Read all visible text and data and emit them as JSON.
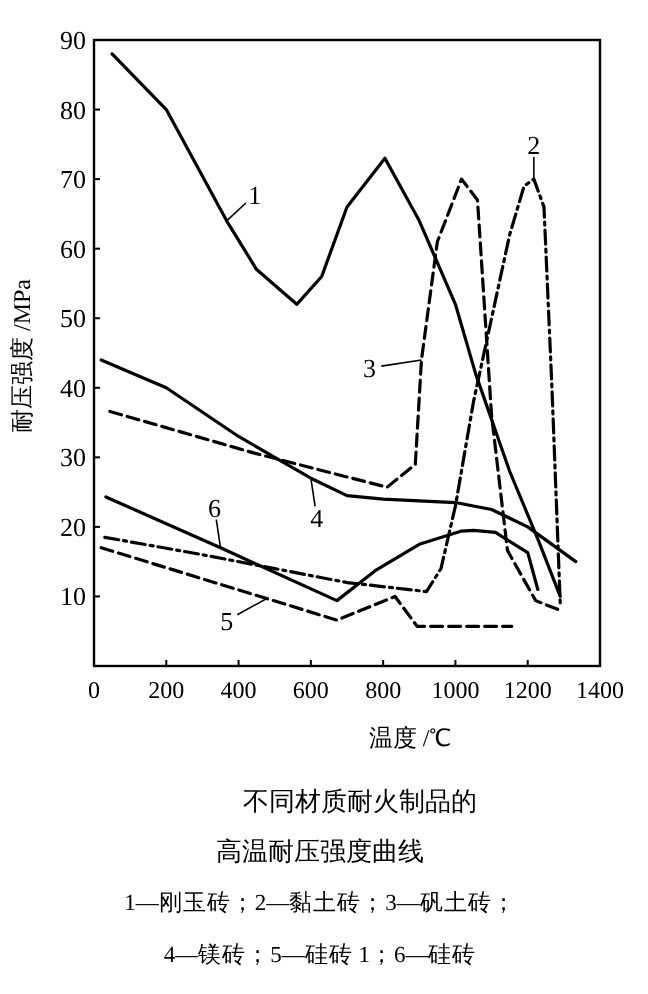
{
  "chart_data": {
    "type": "line",
    "title": "不同材质耐火制品的",
    "subtitle": "高温耐压强度曲线",
    "xlabel": "温度 /℃",
    "ylabel": "耐压强度 /MPa",
    "xlim": [
      0,
      1400
    ],
    "ylim": [
      0,
      90
    ],
    "xticks": [
      0,
      200,
      400,
      600,
      800,
      1000,
      1200,
      1400
    ],
    "yticks": [
      10,
      20,
      30,
      40,
      50,
      60,
      70,
      80,
      90
    ],
    "grid": false,
    "marker": "none",
    "series": [
      {
        "color": "#000000",
        "line_style": "solid",
        "x": [
          50,
          200,
          367,
          450,
          561,
          630,
          700,
          805,
          900,
          1000,
          1056,
          1150,
          1230,
          1290
        ],
        "values": [
          88,
          80,
          64,
          57,
          52,
          56,
          66,
          73,
          64,
          52,
          42,
          28,
          18,
          10
        ]
      },
      {
        "color": "#000000",
        "line_style": "dashdot",
        "x": [
          30,
          300,
          500,
          700,
          920,
          960,
          1000,
          1050,
          1100,
          1150,
          1190,
          1217,
          1245,
          1267,
          1290
        ],
        "values": [
          18.5,
          16,
          14,
          12,
          10.7,
          14,
          23,
          38,
          50,
          62,
          69,
          70,
          66,
          40,
          9
        ]
      },
      {
        "color": "#000000",
        "line_style": "dashed",
        "x": [
          44,
          444,
          811,
          889,
          906,
          950,
          1017,
          1061,
          1100,
          1144,
          1222,
          1290
        ],
        "values": [
          36.6,
          30.6,
          25.7,
          29,
          44,
          61,
          70,
          67,
          36,
          16.6,
          9.4,
          8
        ]
      },
      {
        "color": "#000000",
        "line_style": "solid",
        "x": [
          20,
          200,
          400,
          500,
          600,
          700,
          800,
          1000,
          1100,
          1200,
          1333
        ],
        "values": [
          44,
          40,
          33,
          30,
          27,
          24.5,
          24,
          23.5,
          22.5,
          20,
          15
        ]
      },
      {
        "color": "#000000",
        "line_style": "dashed",
        "x": [
          20,
          478,
          672,
          833,
          894,
          1156
        ],
        "values": [
          17,
          9.7,
          6.6,
          10,
          5.7,
          5.7
        ]
      },
      {
        "color": "#000000",
        "line_style": "solid",
        "x": [
          33,
          350,
          672,
          778,
          900,
          1017,
          1050,
          1111,
          1200,
          1228
        ],
        "values": [
          24.3,
          17,
          9.4,
          13.7,
          17.5,
          19.4,
          19.5,
          19.2,
          16.3,
          11
        ]
      }
    ],
    "annotations": [
      {
        "text": "1",
        "x": 367,
        "y": 64
      },
      {
        "text": "2",
        "x": 1217,
        "y": 70
      },
      {
        "text": "3",
        "x": 906,
        "y": 44
      },
      {
        "text": "4",
        "x": 600,
        "y": 27
      },
      {
        "text": "5",
        "x": 478,
        "y": 9.7
      },
      {
        "text": "6",
        "x": 350,
        "y": 17
      },
      "1—刚玉砖；2—黏土砖；3—矾土砖；",
      "4—镁砖；5—硅砖 1；6—硅砖"
    ]
  }
}
